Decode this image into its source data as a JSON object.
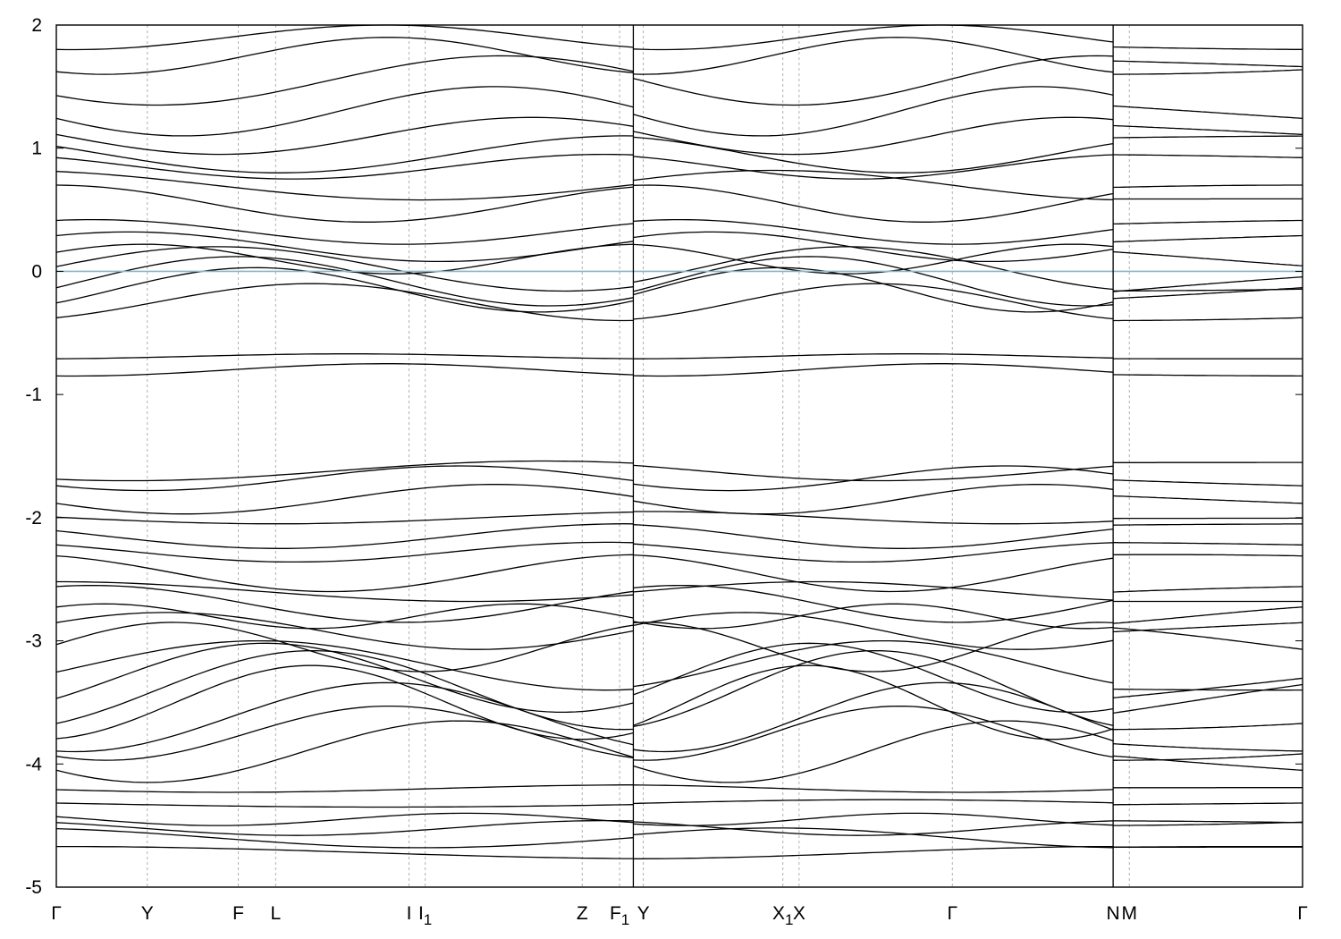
{
  "chart_data": {
    "type": "line",
    "title": "",
    "xlabel": "",
    "ylabel": "",
    "ylim": [
      -5,
      2
    ],
    "yticks": [
      2,
      1,
      0,
      -1,
      -2,
      -3,
      -4,
      -5
    ],
    "grid": "dashed vertical lines at high-symmetry points",
    "reference_line": {
      "y": 0,
      "color": "#7fb8d0"
    },
    "band_color": "#000000",
    "kpoints": [
      {
        "label": "Γ",
        "sub": "",
        "x": 0.0
      },
      {
        "label": "Y",
        "sub": "",
        "x": 0.073
      },
      {
        "label": "F",
        "sub": "",
        "x": 0.146
      },
      {
        "label": "L",
        "sub": "",
        "x": 0.176
      },
      {
        "label": "I",
        "sub": "",
        "x": 0.283
      },
      {
        "label": "I",
        "sub": "1",
        "x": 0.296
      },
      {
        "label": "Z",
        "sub": "",
        "x": 0.422
      },
      {
        "label": "F",
        "sub": "1",
        "x": 0.452
      },
      {
        "label": "Y",
        "sub": "",
        "x": 0.471
      },
      {
        "label": "X",
        "sub": "1",
        "x": 0.583
      },
      {
        "label": "X",
        "sub": "",
        "x": 0.596
      },
      {
        "label": "Γ",
        "sub": "",
        "x": 0.719
      },
      {
        "label": "N",
        "sub": "",
        "x": 0.848
      },
      {
        "label": "M",
        "sub": "",
        "x": 0.861
      },
      {
        "label": "Γ",
        "sub": "",
        "x": 1.0
      }
    ],
    "breaks": [
      0.463,
      0.848
    ],
    "segments": [
      {
        "x": [
          0.0,
          0.463
        ],
        "shift": [
          0.0,
          0.0
        ]
      },
      {
        "x": [
          0.463,
          0.848
        ],
        "shift": [
          0.3,
          0.9
        ]
      },
      {
        "x": [
          0.848,
          1.0
        ],
        "shift": [
          1.4,
          0.0
        ]
      }
    ],
    "bands": [
      {
        "base": -4.72,
        "amp": 0.05,
        "k": 1.0
      },
      {
        "base": -4.6,
        "amp": 0.08,
        "k": 1.5
      },
      {
        "base": -4.52,
        "amp": 0.06,
        "k": 2.0
      },
      {
        "base": -4.45,
        "amp": 0.05,
        "k": 2.5
      },
      {
        "base": -4.32,
        "amp": 0.03,
        "k": 1.0
      },
      {
        "base": -4.2,
        "amp": 0.03,
        "k": 1.5
      },
      {
        "base": -3.9,
        "amp": 0.25,
        "k": 2.0
      },
      {
        "base": -3.75,
        "amp": 0.22,
        "k": 2.2
      },
      {
        "base": -3.62,
        "amp": 0.28,
        "k": 2.0
      },
      {
        "base": -3.5,
        "amp": 0.3,
        "k": 2.3
      },
      {
        "base": -3.4,
        "amp": 0.32,
        "k": 2.0
      },
      {
        "base": -3.3,
        "amp": 0.28,
        "k": 2.1
      },
      {
        "base": -3.2,
        "amp": 0.2,
        "k": 1.8
      },
      {
        "base": -3.05,
        "amp": 0.2,
        "k": 2.5
      },
      {
        "base": -2.92,
        "amp": 0.15,
        "k": 2.0
      },
      {
        "base": -2.8,
        "amp": 0.1,
        "k": 3.0
      },
      {
        "base": -2.7,
        "amp": 0.15,
        "k": 2.0
      },
      {
        "base": -2.6,
        "amp": 0.08,
        "k": 1.5
      },
      {
        "base": -2.45,
        "amp": 0.15,
        "k": 2.0
      },
      {
        "base": -2.28,
        "amp": 0.08,
        "k": 2.0
      },
      {
        "base": -2.15,
        "amp": 0.1,
        "k": 1.8
      },
      {
        "base": -2.0,
        "amp": 0.05,
        "k": 1.5
      },
      {
        "base": -1.85,
        "amp": 0.12,
        "k": 2.0
      },
      {
        "base": -1.68,
        "amp": 0.1,
        "k": 2.0
      },
      {
        "base": -1.62,
        "amp": 0.08,
        "k": 1.5
      },
      {
        "base": -0.8,
        "amp": 0.05,
        "k": 2.0
      },
      {
        "base": -0.69,
        "amp": 0.02,
        "k": 2.0
      },
      {
        "base": -0.25,
        "amp": 0.15,
        "k": 2.0
      },
      {
        "base": -0.15,
        "amp": 0.18,
        "k": 2.2
      },
      {
        "base": -0.08,
        "amp": 0.2,
        "k": 2.0
      },
      {
        "base": 0.02,
        "amp": 0.18,
        "k": 1.8
      },
      {
        "base": 0.1,
        "amp": 0.12,
        "k": 2.5
      },
      {
        "base": 0.2,
        "amp": 0.12,
        "k": 2.0
      },
      {
        "base": 0.32,
        "amp": 0.1,
        "k": 2.0
      },
      {
        "base": 0.55,
        "amp": 0.15,
        "k": 2.0
      },
      {
        "base": 0.7,
        "amp": 0.12,
        "k": 1.5
      },
      {
        "base": 0.85,
        "amp": 0.1,
        "k": 2.0
      },
      {
        "base": 0.95,
        "amp": 0.15,
        "k": 1.8
      },
      {
        "base": 1.1,
        "amp": 0.15,
        "k": 2.0
      },
      {
        "base": 1.3,
        "amp": 0.2,
        "k": 2.0
      },
      {
        "base": 1.55,
        "amp": 0.2,
        "k": 1.8
      },
      {
        "base": 1.75,
        "amp": 0.15,
        "k": 2.2
      },
      {
        "base": 1.9,
        "amp": 0.1,
        "k": 2.0
      }
    ]
  }
}
